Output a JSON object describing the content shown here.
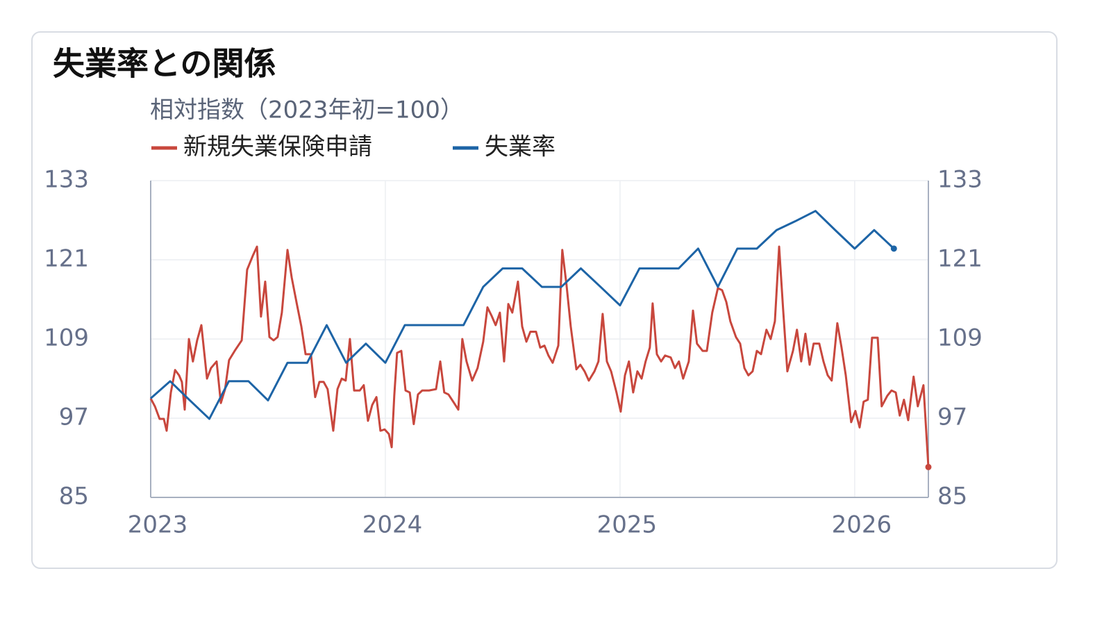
{
  "chart_data": {
    "type": "line",
    "title": "失業率との関係",
    "subtitle": "相対指数（2023年初=100）",
    "xlim": [
      2023,
      2026.314
    ],
    "xticks": [
      2023,
      2024,
      2025,
      2026
    ],
    "ylim": [
      85,
      133
    ],
    "yticks": [
      85,
      97,
      109,
      121,
      133
    ],
    "y2lim": [
      85,
      133
    ],
    "y2ticks": [
      85,
      97,
      109,
      121,
      133
    ],
    "grid": true,
    "series": [
      {
        "name": "新規失業保険申請",
        "color": "#c8473d",
        "x": [
          2023,
          2023.018,
          2023.038,
          2023.056,
          2023.068,
          2023.086,
          2023.104,
          2023.121,
          2023.133,
          2023.145,
          2023.163,
          2023.18,
          2023.198,
          2023.216,
          2023.24,
          2023.257,
          2023.281,
          2023.299,
          2023.317,
          2023.334,
          2023.358,
          2023.388,
          2023.411,
          2023.435,
          2023.453,
          2023.47,
          2023.488,
          2023.506,
          2023.524,
          2023.541,
          2023.559,
          2023.583,
          2023.601,
          2023.624,
          2023.642,
          2023.66,
          2023.683,
          2023.701,
          2023.719,
          2023.737,
          2023.754,
          2023.778,
          2023.796,
          2023.814,
          2023.831,
          2023.849,
          2023.867,
          2023.891,
          2023.908,
          2023.926,
          2023.944,
          2023.962,
          2023.979,
          2023.997,
          2024.015,
          2024.027,
          2024.038,
          2024.05,
          2024.068,
          2024.086,
          2024.104,
          2024.121,
          2024.139,
          2024.157,
          2024.186,
          2024.216,
          2024.234,
          2024.251,
          2024.269,
          2024.293,
          2024.311,
          2024.328,
          2024.346,
          2024.37,
          2024.393,
          2024.417,
          2024.435,
          2024.453,
          2024.47,
          2024.488,
          2024.506,
          2024.524,
          2024.541,
          2024.565,
          2024.583,
          2024.601,
          2024.618,
          2024.642,
          2024.66,
          2024.678,
          2024.695,
          2024.713,
          2024.737,
          2024.754,
          2024.772,
          2024.79,
          2024.814,
          2024.831,
          2024.849,
          2024.867,
          2024.891,
          2024.908,
          2024.926,
          2024.944,
          2024.962,
          2024.985,
          2025.003,
          2025.021,
          2025.038,
          2025.056,
          2025.074,
          2025.092,
          2025.109,
          2025.127,
          2025.139,
          2025.157,
          2025.175,
          2025.192,
          2025.216,
          2025.234,
          2025.251,
          2025.269,
          2025.293,
          2025.311,
          2025.328,
          2025.352,
          2025.37,
          2025.393,
          2025.417,
          2025.435,
          2025.453,
          2025.47,
          2025.494,
          2025.512,
          2025.53,
          2025.547,
          2025.565,
          2025.583,
          2025.601,
          2025.624,
          2025.642,
          2025.66,
          2025.678,
          2025.695,
          2025.713,
          2025.737,
          2025.754,
          2025.772,
          2025.79,
          2025.808,
          2025.825,
          2025.849,
          2025.867,
          2025.885,
          2025.902,
          2025.926,
          2025.944,
          2025.962,
          2025.985,
          2026.003,
          2026.021,
          2026.038,
          2026.056,
          2026.074,
          2026.098,
          2026.115,
          2026.139,
          2026.157,
          2026.175,
          2026.192,
          2026.21,
          2026.228,
          2026.251,
          2026.269,
          2026.293,
          2026.314
        ],
        "values": [
          100,
          98.8,
          96.9,
          96.9,
          95.1,
          100.9,
          104.3,
          103.5,
          102.5,
          98.3,
          109.0,
          105.6,
          108.8,
          111.1,
          103.0,
          104.6,
          105.6,
          99.3,
          101.4,
          105.8,
          107.2,
          108.8,
          119.5,
          121.6,
          123.0,
          112.4,
          117.7,
          109.3,
          108.8,
          109.3,
          113.0,
          122.5,
          118.3,
          114.1,
          110.9,
          106.7,
          106.7,
          100.2,
          102.5,
          102.5,
          101.4,
          95.1,
          101.4,
          103.0,
          102.7,
          109.0,
          101.2,
          101.2,
          102.0,
          96.6,
          99.0,
          100.2,
          95.1,
          95.3,
          94.6,
          92.6,
          100.4,
          106.9,
          107.2,
          101.2,
          100.9,
          96.1,
          100.6,
          101.2,
          101.2,
          101.4,
          105.6,
          100.9,
          100.6,
          99.3,
          98.3,
          109.0,
          105.6,
          102.7,
          104.6,
          108.6,
          113.8,
          112.5,
          111.1,
          113.0,
          105.6,
          114.3,
          113.0,
          117.7,
          110.9,
          108.6,
          110.1,
          110.1,
          107.7,
          108.0,
          106.5,
          105.4,
          108.0,
          122.5,
          117.2,
          110.9,
          104.4,
          105.1,
          104.1,
          102.7,
          104.1,
          105.6,
          112.8,
          105.6,
          104.1,
          100.9,
          98.0,
          103.5,
          105.6,
          100.9,
          104.1,
          103.0,
          105.6,
          107.7,
          114.4,
          106.7,
          105.6,
          106.5,
          106.2,
          104.6,
          105.6,
          103.0,
          105.6,
          113.3,
          108.3,
          107.2,
          107.2,
          113.0,
          116.7,
          116.4,
          114.6,
          111.7,
          109.3,
          108.3,
          104.6,
          103.5,
          104.1,
          107.2,
          106.7,
          110.4,
          109.0,
          111.7,
          123.0,
          113.5,
          104.1,
          107.2,
          110.4,
          105.6,
          109.8,
          105.1,
          108.3,
          108.3,
          105.6,
          103.5,
          102.7,
          111.4,
          107.7,
          103.5,
          96.4,
          98.1,
          95.6,
          99.5,
          99.8,
          109.2,
          109.2,
          98.8,
          100.4,
          101.2,
          100.9,
          97.4,
          99.8,
          96.7,
          103.3,
          98.8,
          102.0,
          89.6
        ]
      },
      {
        "name": "失業率",
        "color": "#1d64a6",
        "axis": "y2",
        "x": [
          2023,
          2023.083,
          2023.167,
          2023.25,
          2023.333,
          2023.417,
          2023.5,
          2023.583,
          2023.667,
          2023.75,
          2023.833,
          2023.917,
          2024,
          2024.083,
          2024.167,
          2024.25,
          2024.333,
          2024.417,
          2024.5,
          2024.583,
          2024.667,
          2024.75,
          2024.833,
          2024.917,
          2025,
          2025.083,
          2025.167,
          2025.25,
          2025.333,
          2025.417,
          2025.5,
          2025.583,
          2025.667,
          2025.75,
          2025.833,
          2025.917,
          2026,
          2026.083,
          2026.167
        ],
        "values": [
          100,
          102.6,
          99.7,
          96.9,
          102.6,
          102.6,
          99.7,
          105.4,
          105.4,
          111.1,
          105.4,
          108.3,
          105.4,
          111.1,
          111.1,
          111.1,
          111.1,
          116.9,
          119.7,
          119.7,
          116.9,
          116.9,
          119.7,
          116.9,
          114.1,
          119.7,
          119.7,
          119.7,
          122.7,
          116.9,
          122.7,
          122.7,
          125.5,
          126.9,
          128.4,
          125.5,
          122.7,
          125.5,
          122.7
        ]
      }
    ]
  }
}
